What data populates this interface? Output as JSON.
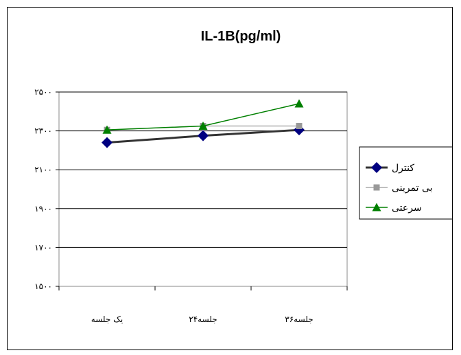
{
  "chart_data": {
    "type": "line",
    "title": "IL-1B(pg/ml)",
    "categories": [
      "یک جلسه",
      "۲۴جلسه",
      "۳۶جلسه"
    ],
    "ytick_labels": [
      "۱۵۰۰",
      "۱۷۰۰",
      "۱۹۰۰",
      "۲۱۰۰",
      "۲۳۰۰",
      "۲۵۰۰"
    ],
    "yticks": [
      1500,
      1700,
      1900,
      2100,
      2300,
      2500
    ],
    "ylim": [
      1500,
      2500
    ],
    "legend_position": "right",
    "series": [
      {
        "name": "کنترل",
        "values": [
          2240,
          2275,
          2305
        ],
        "color": "#333333",
        "marker": "diamond"
      },
      {
        "name": "بی تمرینی",
        "values": [
          2305,
          2325,
          2325
        ],
        "color": "#999999",
        "marker": "square"
      },
      {
        "name": "سرعتی",
        "values": [
          2305,
          2325,
          2440
        ],
        "color": "#008000",
        "marker": "triangle"
      }
    ]
  }
}
